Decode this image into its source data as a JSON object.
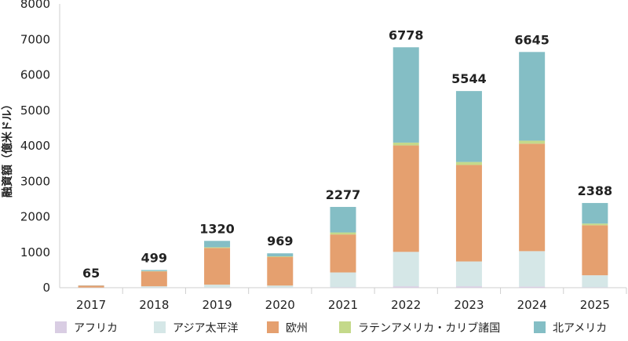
{
  "chart_data": {
    "type": "bar",
    "stacked": true,
    "ylabel": "融資額（億米ドル）",
    "ylim": [
      0,
      8000
    ],
    "yticks": [
      0,
      1000,
      2000,
      3000,
      4000,
      5000,
      6000,
      7000,
      8000
    ],
    "categories": [
      "2017",
      "2018",
      "2019",
      "2020",
      "2021",
      "2022",
      "2023",
      "2024",
      "2025"
    ],
    "totals": [
      65,
      499,
      1320,
      969,
      2277,
      6778,
      5544,
      6645,
      2388
    ],
    "legend_position": "bottom",
    "grid": false,
    "series": [
      {
        "name": "アフリカ",
        "color": "#d9cde3",
        "values": [
          0,
          5,
          5,
          5,
          10,
          40,
          40,
          30,
          10
        ]
      },
      {
        "name": "アジア太平洋",
        "color": "#d5e7e7",
        "values": [
          5,
          35,
          80,
          55,
          420,
          970,
          700,
          1000,
          340
        ]
      },
      {
        "name": "欧州",
        "color": "#e5a06f",
        "values": [
          55,
          420,
          1035,
          810,
          1070,
          3000,
          2720,
          3030,
          1410
        ]
      },
      {
        "name": "ラテンアメリカ・カリブ諸国",
        "color": "#c4d98a",
        "values": [
          0,
          9,
          20,
          14,
          57,
          80,
          84,
          85,
          48
        ]
      },
      {
        "name": "北アメリカ",
        "color": "#84bec5",
        "values": [
          5,
          30,
          180,
          85,
          720,
          2688,
          2000,
          2500,
          580
        ]
      }
    ]
  }
}
